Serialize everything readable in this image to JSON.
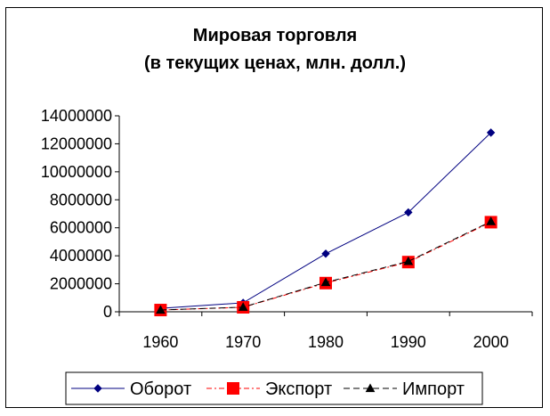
{
  "chart_data": {
    "type": "line",
    "title": "Мировая торговля",
    "subtitle": "(в текущих ценах, млн. долл.)",
    "xlabel": "",
    "ylabel": "",
    "categories": [
      "1960",
      "1970",
      "1980",
      "1990",
      "2000"
    ],
    "ylim": [
      0,
      14000000
    ],
    "yticks": [
      0,
      2000000,
      4000000,
      6000000,
      8000000,
      10000000,
      12000000,
      14000000
    ],
    "ytick_labels": [
      "0",
      "2000000",
      "4000000",
      "6000000",
      "8000000",
      "10000000",
      "12000000",
      "14000000"
    ],
    "grid": false,
    "legend_position": "bottom",
    "series": [
      {
        "name": "Оборот",
        "values": [
          250000,
          640000,
          4150000,
          7100000,
          12800000
        ],
        "color": "#000080",
        "marker": "diamond",
        "line": "solid"
      },
      {
        "name": "Экспорт",
        "values": [
          125000,
          320000,
          2050000,
          3550000,
          6400000
        ],
        "color": "#ff0000",
        "marker": "square",
        "line": "dash-dot"
      },
      {
        "name": "Импорт",
        "values": [
          125000,
          330000,
          2100000,
          3600000,
          6450000
        ],
        "color": "#000000",
        "marker": "triangle",
        "line": "dashed"
      }
    ]
  }
}
